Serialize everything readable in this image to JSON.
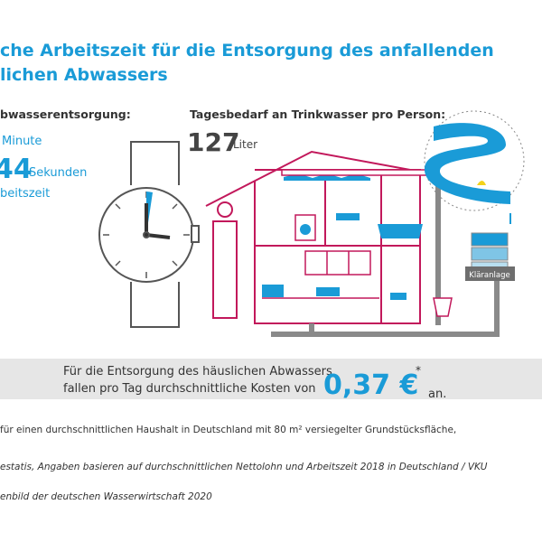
{
  "header": {
    "title_lines": [
      "che Arbeitszeit für die Entsorgung des anfallenden",
      "lichen Abwassers"
    ]
  },
  "left": {
    "label": "bwasserentsorgung:",
    "minutes": "Minute",
    "seconds_value": "44",
    "seconds_unit": "Sekunden",
    "worktime": "beitszeit"
  },
  "right": {
    "label": "Tagesbedarf an Trinkwasser pro Person:",
    "value": "127",
    "unit": "Liter"
  },
  "illustration": {
    "plant_label": "Kläranlage"
  },
  "cost": {
    "text_lines": [
      "Für die Entsorgung des häuslichen Abwassers",
      "fallen pro Tag durchschnittliche Kosten von"
    ],
    "value": "0,37 €",
    "asterisk": "*",
    "suffix": "an."
  },
  "footnotes": [
    "für einen durchschnittlichen Haushalt in Deutschland mit 80 m² versiegelter Grundstücksfläche,",
    "estatis, Angaben basieren auf durchschnittlichen Nettolohn und Arbeitszeit 2018 in Deutschland / VKU",
    "enbild der deutschen Wasserwirtschaft 2020"
  ]
}
